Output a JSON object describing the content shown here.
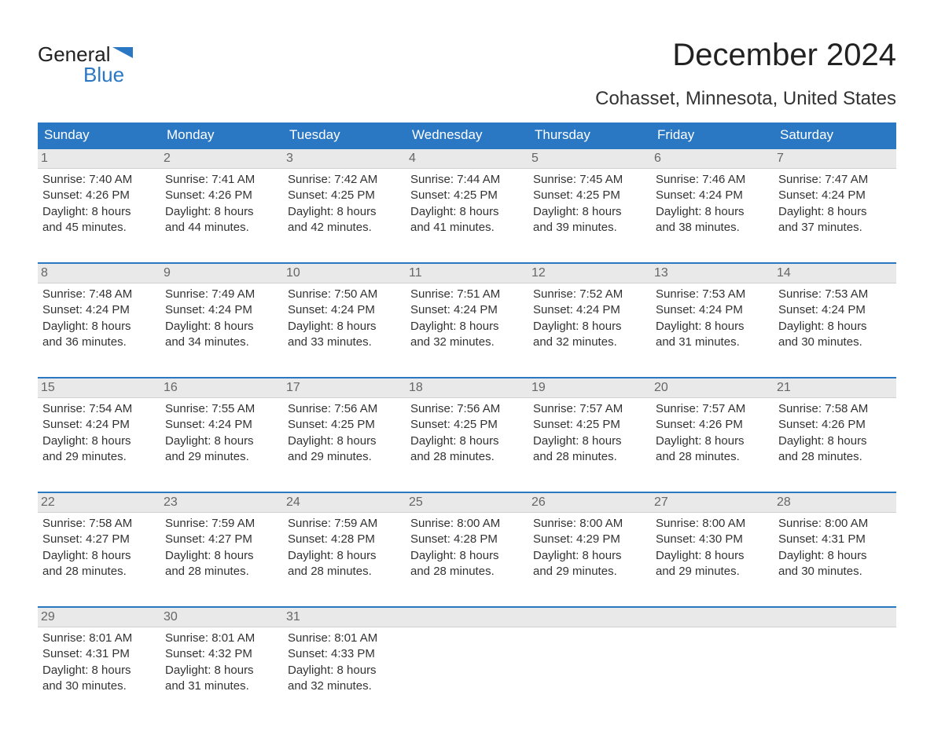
{
  "logo": {
    "line1": "General",
    "line2": "Blue",
    "flag_color": "#2a77c4"
  },
  "title": "December 2024",
  "location": "Cohasset, Minnesota, United States",
  "colors": {
    "header_bg": "#2a77c4",
    "header_text": "#ffffff",
    "daynum_bg": "#e9e9e9",
    "daynum_text": "#666666",
    "body_text": "#333333",
    "week_border": "#2a77c4",
    "page_bg": "#ffffff"
  },
  "fonts": {
    "title_pt": 40,
    "location_pt": 24,
    "header_pt": 17,
    "body_pt": 15
  },
  "day_headers": [
    "Sunday",
    "Monday",
    "Tuesday",
    "Wednesday",
    "Thursday",
    "Friday",
    "Saturday"
  ],
  "weeks": [
    [
      {
        "n": "1",
        "sunrise": "7:40 AM",
        "sunset": "4:26 PM",
        "dl1": "8 hours",
        "dl2": "and 45 minutes."
      },
      {
        "n": "2",
        "sunrise": "7:41 AM",
        "sunset": "4:26 PM",
        "dl1": "8 hours",
        "dl2": "and 44 minutes."
      },
      {
        "n": "3",
        "sunrise": "7:42 AM",
        "sunset": "4:25 PM",
        "dl1": "8 hours",
        "dl2": "and 42 minutes."
      },
      {
        "n": "4",
        "sunrise": "7:44 AM",
        "sunset": "4:25 PM",
        "dl1": "8 hours",
        "dl2": "and 41 minutes."
      },
      {
        "n": "5",
        "sunrise": "7:45 AM",
        "sunset": "4:25 PM",
        "dl1": "8 hours",
        "dl2": "and 39 minutes."
      },
      {
        "n": "6",
        "sunrise": "7:46 AM",
        "sunset": "4:24 PM",
        "dl1": "8 hours",
        "dl2": "and 38 minutes."
      },
      {
        "n": "7",
        "sunrise": "7:47 AM",
        "sunset": "4:24 PM",
        "dl1": "8 hours",
        "dl2": "and 37 minutes."
      }
    ],
    [
      {
        "n": "8",
        "sunrise": "7:48 AM",
        "sunset": "4:24 PM",
        "dl1": "8 hours",
        "dl2": "and 36 minutes."
      },
      {
        "n": "9",
        "sunrise": "7:49 AM",
        "sunset": "4:24 PM",
        "dl1": "8 hours",
        "dl2": "and 34 minutes."
      },
      {
        "n": "10",
        "sunrise": "7:50 AM",
        "sunset": "4:24 PM",
        "dl1": "8 hours",
        "dl2": "and 33 minutes."
      },
      {
        "n": "11",
        "sunrise": "7:51 AM",
        "sunset": "4:24 PM",
        "dl1": "8 hours",
        "dl2": "and 32 minutes."
      },
      {
        "n": "12",
        "sunrise": "7:52 AM",
        "sunset": "4:24 PM",
        "dl1": "8 hours",
        "dl2": "and 32 minutes."
      },
      {
        "n": "13",
        "sunrise": "7:53 AM",
        "sunset": "4:24 PM",
        "dl1": "8 hours",
        "dl2": "and 31 minutes."
      },
      {
        "n": "14",
        "sunrise": "7:53 AM",
        "sunset": "4:24 PM",
        "dl1": "8 hours",
        "dl2": "and 30 minutes."
      }
    ],
    [
      {
        "n": "15",
        "sunrise": "7:54 AM",
        "sunset": "4:24 PM",
        "dl1": "8 hours",
        "dl2": "and 29 minutes."
      },
      {
        "n": "16",
        "sunrise": "7:55 AM",
        "sunset": "4:24 PM",
        "dl1": "8 hours",
        "dl2": "and 29 minutes."
      },
      {
        "n": "17",
        "sunrise": "7:56 AM",
        "sunset": "4:25 PM",
        "dl1": "8 hours",
        "dl2": "and 29 minutes."
      },
      {
        "n": "18",
        "sunrise": "7:56 AM",
        "sunset": "4:25 PM",
        "dl1": "8 hours",
        "dl2": "and 28 minutes."
      },
      {
        "n": "19",
        "sunrise": "7:57 AM",
        "sunset": "4:25 PM",
        "dl1": "8 hours",
        "dl2": "and 28 minutes."
      },
      {
        "n": "20",
        "sunrise": "7:57 AM",
        "sunset": "4:26 PM",
        "dl1": "8 hours",
        "dl2": "and 28 minutes."
      },
      {
        "n": "21",
        "sunrise": "7:58 AM",
        "sunset": "4:26 PM",
        "dl1": "8 hours",
        "dl2": "and 28 minutes."
      }
    ],
    [
      {
        "n": "22",
        "sunrise": "7:58 AM",
        "sunset": "4:27 PM",
        "dl1": "8 hours",
        "dl2": "and 28 minutes."
      },
      {
        "n": "23",
        "sunrise": "7:59 AM",
        "sunset": "4:27 PM",
        "dl1": "8 hours",
        "dl2": "and 28 minutes."
      },
      {
        "n": "24",
        "sunrise": "7:59 AM",
        "sunset": "4:28 PM",
        "dl1": "8 hours",
        "dl2": "and 28 minutes."
      },
      {
        "n": "25",
        "sunrise": "8:00 AM",
        "sunset": "4:28 PM",
        "dl1": "8 hours",
        "dl2": "and 28 minutes."
      },
      {
        "n": "26",
        "sunrise": "8:00 AM",
        "sunset": "4:29 PM",
        "dl1": "8 hours",
        "dl2": "and 29 minutes."
      },
      {
        "n": "27",
        "sunrise": "8:00 AM",
        "sunset": "4:30 PM",
        "dl1": "8 hours",
        "dl2": "and 29 minutes."
      },
      {
        "n": "28",
        "sunrise": "8:00 AM",
        "sunset": "4:31 PM",
        "dl1": "8 hours",
        "dl2": "and 30 minutes."
      }
    ],
    [
      {
        "n": "29",
        "sunrise": "8:01 AM",
        "sunset": "4:31 PM",
        "dl1": "8 hours",
        "dl2": "and 30 minutes."
      },
      {
        "n": "30",
        "sunrise": "8:01 AM",
        "sunset": "4:32 PM",
        "dl1": "8 hours",
        "dl2": "and 31 minutes."
      },
      {
        "n": "31",
        "sunrise": "8:01 AM",
        "sunset": "4:33 PM",
        "dl1": "8 hours",
        "dl2": "and 32 minutes."
      },
      null,
      null,
      null,
      null
    ]
  ],
  "labels": {
    "sunrise": "Sunrise: ",
    "sunset": "Sunset: ",
    "daylight": "Daylight: "
  }
}
